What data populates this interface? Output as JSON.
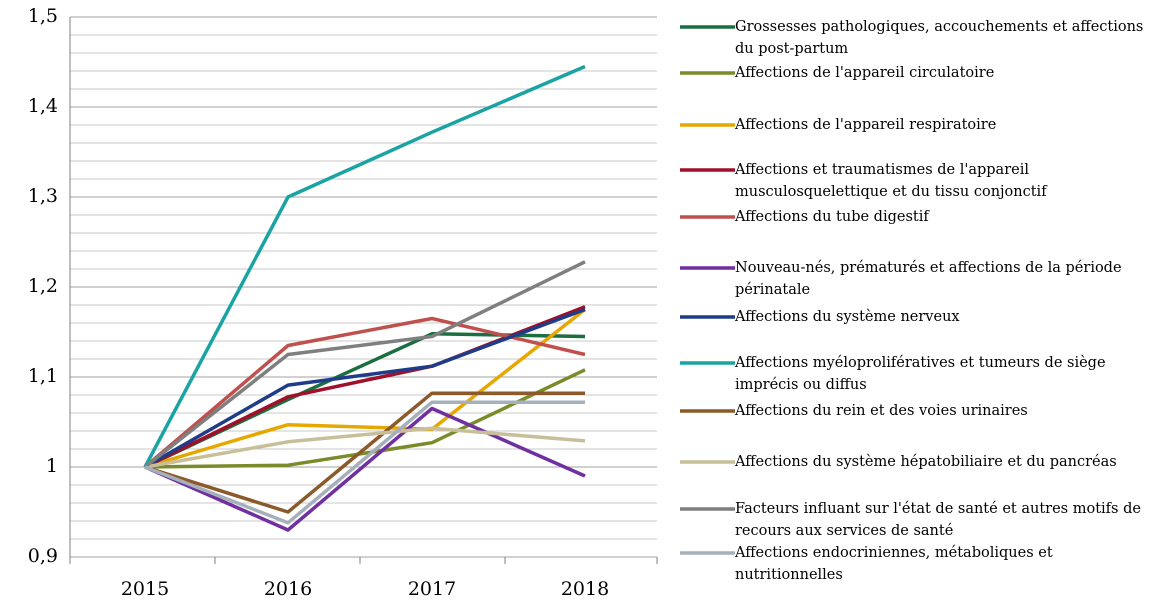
{
  "chart_data": {
    "type": "line",
    "x": [
      2015,
      2016,
      2017,
      2018
    ],
    "ylim": [
      0.9,
      1.5
    ],
    "yticks": [
      {
        "value": 0.9,
        "label": "0,9"
      },
      1,
      {
        "value": 1.1,
        "label": "1,1"
      },
      {
        "value": 1.2,
        "label": "1,2"
      },
      {
        "value": 1.3,
        "label": "1,3"
      },
      {
        "value": 1.4,
        "label": "1,4"
      },
      {
        "value": 1.5,
        "label": "1,5"
      }
    ],
    "yminorticks": [
      0.92,
      0.94,
      0.96,
      0.98,
      1.02,
      1.04,
      1.06,
      1.08,
      1.12,
      1.14,
      1.16,
      1.18,
      1.22,
      1.24,
      1.26,
      1.28,
      1.32,
      1.34,
      1.36,
      1.38,
      1.42,
      1.44,
      1.46,
      1.48
    ],
    "grid": true,
    "legend": "right",
    "series": [
      {
        "name": "Grossesses pathologiques, accouchements et affections du post-partum",
        "color": "#1b6e3f",
        "values": [
          1,
          1.075,
          1.148,
          1.145
        ]
      },
      {
        "name": "Affections de l'appareil circulatoire",
        "color": "#7a8c2a",
        "values": [
          1,
          1.002,
          1.027,
          1.108
        ]
      },
      {
        "name": "Affections de l'appareil respiratoire",
        "color": "#e6a800",
        "values": [
          1,
          1.047,
          1.042,
          1.175
        ]
      },
      {
        "name": "Affections et traumatismes de l'appareil musculosquelettique et du tissu conjonctif",
        "color": "#a0102a",
        "values": [
          1,
          1.078,
          1.112,
          1.178
        ]
      },
      {
        "name": "Affections du tube digestif",
        "color": "#c0504d",
        "values": [
          1,
          1.135,
          1.165,
          1.125
        ]
      },
      {
        "name": "Nouveau-nés, prématurés et affections de la période périnatale",
        "color": "#7030a0",
        "values": [
          1,
          0.93,
          1.065,
          0.99
        ]
      },
      {
        "name": "Affections du système nerveux",
        "color": "#1f3c88",
        "values": [
          1,
          1.091,
          1.112,
          1.175
        ]
      },
      {
        "name": "Affections myéloprolifératives et tumeurs de siège imprécis ou diffus",
        "color": "#1aa3a3",
        "values": [
          1,
          1.3,
          1.372,
          1.445
        ]
      },
      {
        "name": "Affections du rein et des voies urinaires",
        "color": "#8b5a2b",
        "values": [
          1,
          0.95,
          1.082,
          1.082
        ]
      },
      {
        "name": "Affections du système hépatobiliaire et du pancréas",
        "color": "#c8bf9a",
        "values": [
          1,
          1.028,
          1.043,
          1.029
        ]
      },
      {
        "name": "Facteurs influant sur l'état de santé et autres motifs de recours aux services de santé",
        "color": "#7f7f7f",
        "values": [
          1,
          1.125,
          1.145,
          1.228
        ]
      },
      {
        "name": "Affections endocriniennes, métaboliques et nutritionnelles",
        "color": "#a5b0bc",
        "values": [
          1,
          0.938,
          1.072,
          1.072
        ]
      }
    ]
  }
}
